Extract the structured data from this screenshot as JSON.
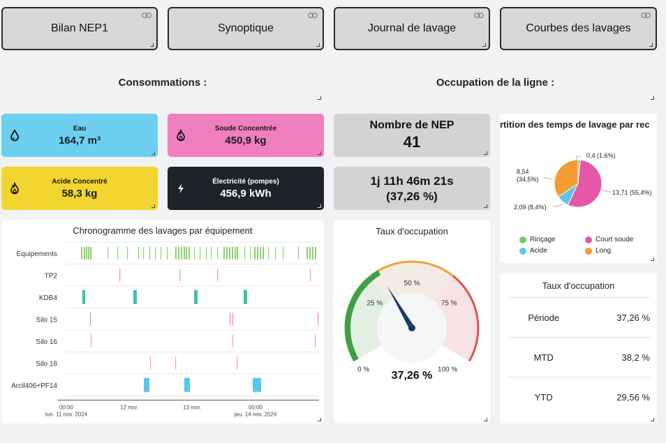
{
  "nav": {
    "bilan": "Bilan NEP1",
    "synoptique": "Synoptique",
    "journal": "Journal de lavage",
    "courbes": "Courbes des lavages"
  },
  "sections": {
    "consommations": "Consommations :",
    "occupation": "Occupation de la ligne :"
  },
  "kpis": {
    "eau": {
      "label": "Eau",
      "value": "164,7 m³",
      "color": "#6ccff0",
      "icon": "water-drop-icon"
    },
    "soude": {
      "label": "Soude Concentrée",
      "value": "450,9 kg",
      "color": "#f07fc0",
      "icon": "flame-icon"
    },
    "acide": {
      "label": "Acide Concentré",
      "value": "58,3 kg",
      "color": "#f2d52f",
      "icon": "flame-icon"
    },
    "elec": {
      "label": "Électricité (pompes)",
      "value": "456,9 kWh",
      "color": "#1f2329",
      "icon": "lightning-icon"
    }
  },
  "nep": {
    "label": "Nombre de NEP",
    "value": "41"
  },
  "duration": {
    "line1": "1j 11h 46m 21s",
    "line2": "(37,26 %)"
  },
  "pie": {
    "title": "rtition des temps de lavage par rec",
    "labels": {
      "court": "13,71 (55,4%)",
      "acide": "2,09 (8,4%)",
      "long": "8,54",
      "long_pct": "(34,5%)",
      "rincage": "0,4 (1,6%)"
    },
    "legend": [
      {
        "name": "Rinçage",
        "color": "#7cc86d"
      },
      {
        "name": "Court soude",
        "color": "#e557a8"
      },
      {
        "name": "Acide",
        "color": "#5bc5ea"
      },
      {
        "name": "Long",
        "color": "#f39c32"
      }
    ],
    "values": {
      "rincage": 0.4,
      "court": 13.71,
      "acide": 2.09,
      "long": 8.54
    }
  },
  "gantt": {
    "title": "Chronogramme des lavages par équipement",
    "rows": [
      "Equipements",
      "TP2",
      "KDB4",
      "Silo 15",
      "Silo 16",
      "Silo 18",
      "Arcil406+PF14"
    ],
    "ticks": [
      {
        "line1": "00:00",
        "line2": "lun. 11 nov. 2024"
      },
      {
        "line1": "12 nov.",
        "line2": ""
      },
      {
        "line1": "13 nov.",
        "line2": ""
      },
      {
        "line1": "00:00",
        "line2": "jeu. 14 nov. 2024"
      }
    ]
  },
  "gauge": {
    "title": "Taux d'occupation",
    "value": 37.26,
    "value_label": "37,26 %",
    "ticks": [
      "0 %",
      "25 %",
      "50 %",
      "75 %",
      "100 %"
    ]
  },
  "occupation_table": {
    "title": "Taux d'occupation",
    "rows": [
      {
        "k": "Période",
        "v": "37,26 %"
      },
      {
        "k": "MTD",
        "v": "38,2 %"
      },
      {
        "k": "YTD",
        "v": "29,56 %"
      }
    ]
  }
}
